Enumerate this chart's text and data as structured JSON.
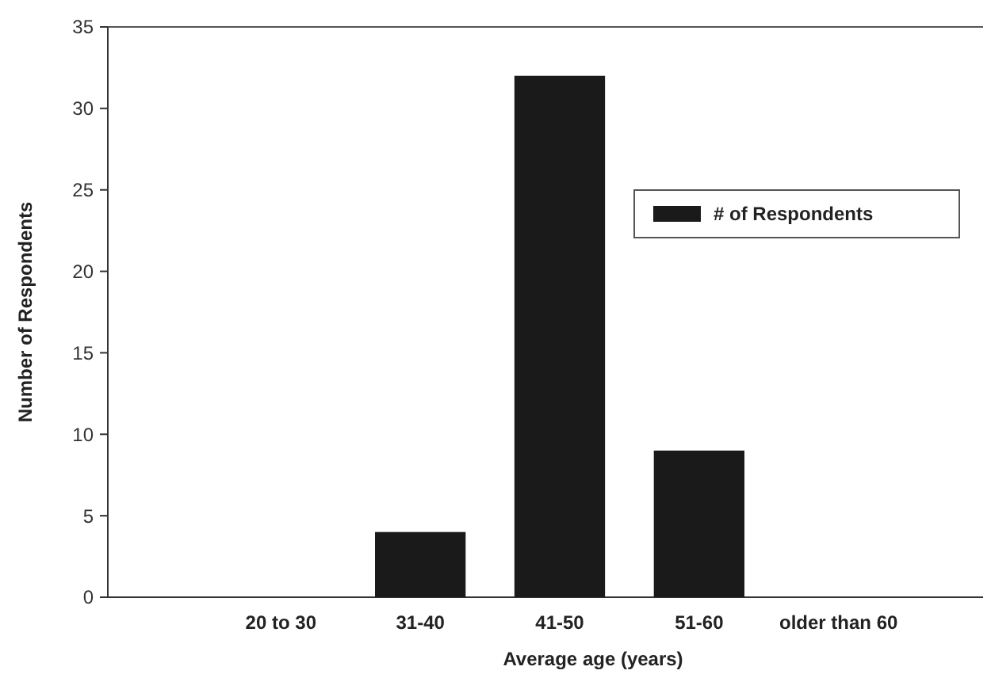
{
  "chart_data": {
    "type": "bar",
    "xlabel": "Average age (years)",
    "ylabel": "Number of Respondents",
    "categories": [
      "20 to 30",
      "31-40",
      "41-50",
      "51-60",
      "older than 60"
    ],
    "series": [
      {
        "name": "# of Respondents",
        "color": "#1a1a1a",
        "values": [
          0,
          4,
          32,
          9,
          0
        ]
      }
    ],
    "ylim": [
      0,
      35
    ],
    "yticks": [
      0,
      5,
      10,
      15,
      20,
      25,
      30,
      35
    ],
    "grid": false,
    "legend": "right"
  }
}
